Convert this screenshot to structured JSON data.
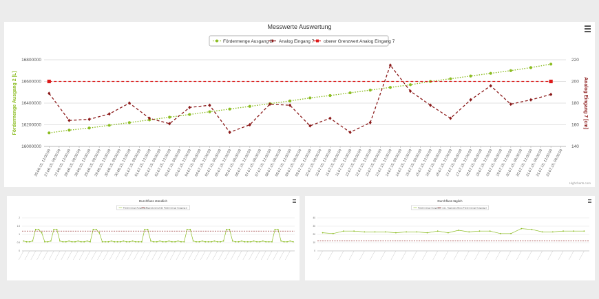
{
  "chart_data": [
    {
      "type": "line",
      "title": "Messwerte Auswertung",
      "credit": "Highcharts.com",
      "legend_position": "top-center",
      "grid": true,
      "categories": [
        "26.06.15, 12:00:00",
        "27.06.15, 00:00:00",
        "27.06.15, 12:00:00",
        "28.06.15, 00:00:00",
        "28.06.15, 12:00:00",
        "29.06.15, 00:00:00",
        "29.06.15, 12:00:00",
        "30.06.15, 00:00:00",
        "30.06.15, 12:00:00",
        "01.07.15, 00:00:00",
        "01.07.15, 12:00:00",
        "02.07.15, 00:00:00",
        "02.07.15, 12:00:00",
        "03.07.15, 00:00:00",
        "03.07.15, 12:00:00",
        "04.07.15, 00:00:00",
        "04.07.15, 12:00:00",
        "05.07.15, 00:00:00",
        "05.07.15, 12:00:00",
        "06.07.15, 00:00:00",
        "06.07.15, 12:00:00",
        "07.07.15, 00:00:00",
        "07.07.15, 12:00:00",
        "08.07.15, 00:00:00",
        "08.07.15, 12:00:00",
        "09.07.15, 00:00:00",
        "09.07.15, 12:00:00",
        "10.07.15, 00:00:00",
        "10.07.15, 12:00:00",
        "11.07.15, 00:00:00",
        "11.07.15, 12:00:00",
        "12.07.15, 00:00:00",
        "12.07.15, 12:00:00",
        "13.07.15, 00:00:00",
        "13.07.15, 12:00:00",
        "14.07.15, 00:00:00",
        "14.07.15, 12:00:00",
        "15.07.15, 00:00:00",
        "15.07.15, 12:00:00",
        "16.07.15, 00:00:00",
        "16.07.15, 12:00:00",
        "17.07.15, 00:00:00",
        "17.07.15, 12:00:00",
        "18.07.15, 00:00:00",
        "18.07.15, 12:00:00",
        "19.07.15, 00:00:00",
        "19.07.15, 12:00:00",
        "20.07.15, 00:00:00",
        "20.07.15, 12:00:00",
        "21.07.15, 00:00:00",
        "21.07.15, 12:00:00",
        "22.07.15, 00:00:00"
      ],
      "ylabel": "Fördermenge Ausgang 2 [L]",
      "ylim": [
        16000000,
        16800000
      ],
      "yticks": [
        16000000,
        16200000,
        16400000,
        16600000,
        16800000
      ],
      "y2label": "Analog Eingang 7 [cm]",
      "y2lim": [
        140,
        220
      ],
      "y2ticks": [
        140,
        160,
        180,
        200,
        220
      ],
      "series": [
        {
          "name": "Fördermenge Ausgang 2",
          "axis": "left",
          "color": "#8bbc21",
          "style": "dotted",
          "marker": "circle",
          "points": [
            [
              0,
              16125000
            ],
            [
              2,
              16150000
            ],
            [
              4,
              16170000
            ],
            [
              6,
              16195000
            ],
            [
              8,
              16220000
            ],
            [
              10,
              16245000
            ],
            [
              12,
              16270000
            ],
            [
              14,
              16295000
            ],
            [
              16,
              16320000
            ],
            [
              18,
              16345000
            ],
            [
              20,
              16370000
            ],
            [
              22,
              16395000
            ],
            [
              24,
              16420000
            ],
            [
              26,
              16448000
            ],
            [
              28,
              16470000
            ],
            [
              30,
              16495000
            ],
            [
              32,
              16520000
            ],
            [
              34,
              16545000
            ],
            [
              36,
              16570000
            ],
            [
              38,
              16600000
            ],
            [
              40,
              16625000
            ],
            [
              42,
              16650000
            ],
            [
              44,
              16675000
            ],
            [
              46,
              16700000
            ],
            [
              48,
              16728000
            ],
            [
              50,
              16760000
            ]
          ]
        },
        {
          "name": "Analog Eingang 7",
          "axis": "right",
          "color": "#8b1a1a",
          "style": "dashed",
          "marker": "diamond",
          "points": [
            [
              0,
              189
            ],
            [
              2,
              164
            ],
            [
              4,
              165
            ],
            [
              6,
              170
            ],
            [
              8,
              180
            ],
            [
              10,
              166
            ],
            [
              12,
              161
            ],
            [
              14,
              176
            ],
            [
              16,
              178
            ],
            [
              18,
              153
            ],
            [
              20,
              160
            ],
            [
              22,
              179
            ],
            [
              24,
              178
            ],
            [
              26,
              159
            ],
            [
              28,
              166
            ],
            [
              30,
              153
            ],
            [
              32,
              162
            ],
            [
              34,
              215
            ],
            [
              36,
              191
            ],
            [
              38,
              178
            ],
            [
              40,
              166
            ],
            [
              42,
              183
            ],
            [
              44,
              196
            ],
            [
              46,
              179
            ],
            [
              48,
              183
            ],
            [
              50,
              188
            ]
          ]
        },
        {
          "name": "oberer Grenzwert Analog Eingang 7",
          "axis": "right",
          "color": "#dd1a1a",
          "style": "dashed",
          "marker": "square",
          "points": [
            [
              0,
              200
            ],
            [
              50,
              200
            ]
          ]
        }
      ]
    },
    {
      "type": "line",
      "title": "Durchfluss stündlich",
      "legend_position": "top-center",
      "grid": true,
      "ylim": [
        0,
        2
      ],
      "yticks": [
        "0",
        "0.5",
        "1",
        "1.5",
        "2"
      ],
      "x_count": 90,
      "series": [
        {
          "name": "Fördermenge Ausgang 2",
          "color": "#8bbc21",
          "style": "solid",
          "marker": "circle",
          "values": [
            0.6,
            0.55,
            0.55,
            0.6,
            1.3,
            1.3,
            1.1,
            0.55,
            0.55,
            0.6,
            1.3,
            1.3,
            0.6,
            0.55,
            0.55,
            0.6,
            0.55,
            0.55,
            0.6,
            0.55,
            0.55,
            0.6,
            0.55,
            1.3,
            1.3,
            1.1,
            0.55,
            0.55,
            0.55,
            0.6,
            0.55,
            0.55,
            0.55,
            0.6,
            0.55,
            0.55,
            0.6,
            0.55,
            0.55,
            0.55,
            1.3,
            1.3,
            0.6,
            0.55,
            0.55,
            0.6,
            0.55,
            0.55,
            0.6,
            0.55,
            0.55,
            0.6,
            0.55,
            0.55,
            1.3,
            1.3,
            0.6,
            0.55,
            0.55,
            0.6,
            0.55,
            0.55,
            0.55,
            0.6,
            0.55,
            0.55,
            0.6,
            1.3,
            1.3,
            0.6,
            0.55,
            0.55,
            0.6,
            0.55,
            0.55,
            0.55,
            0.6,
            0.55,
            0.55,
            0.6,
            0.55,
            0.55,
            0.55,
            1.3,
            1.3,
            0.6,
            0.55,
            0.55,
            0.6,
            0.55
          ]
        },
        {
          "name": "Tagesdurchschnitt Fördermenge Ausgang 2",
          "color": "#8b1a1a",
          "style": "dashed",
          "marker": "none",
          "values": [
            1.2,
            1.2
          ]
        }
      ]
    },
    {
      "type": "line",
      "title": "Durchfluss täglich",
      "legend_position": "top-center",
      "grid": true,
      "ylim": [
        0,
        40
      ],
      "yticks": [
        "0",
        "10",
        "20",
        "30",
        "40"
      ],
      "x_count": 26,
      "series": [
        {
          "name": "Fördermenge Ausgang 2",
          "color": "#8bbc21",
          "style": "solid",
          "marker": "circle",
          "values": [
            22,
            21,
            24,
            24,
            23,
            23,
            23,
            22,
            23,
            23,
            22,
            24,
            22,
            25,
            23,
            24,
            24,
            21,
            21,
            27,
            26,
            23,
            23,
            24,
            24,
            24
          ]
        },
        {
          "name": "max. Tagesdurchfluss Fördermenge Ausgang 2",
          "color": "#8b1a1a",
          "style": "dashed",
          "marker": "none",
          "values": [
            12,
            12
          ]
        }
      ]
    }
  ]
}
